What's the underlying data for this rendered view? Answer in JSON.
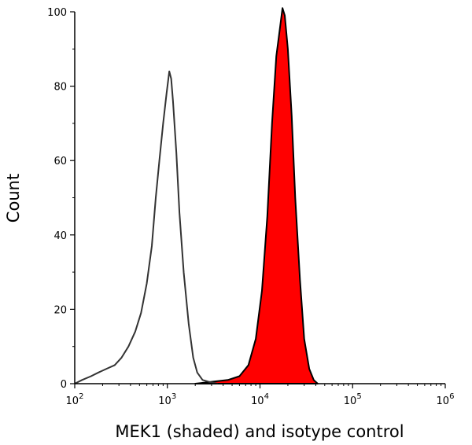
{
  "chart_data": {
    "type": "area",
    "title": "",
    "xlabel": "MEK1 (shaded) and isotype control",
    "ylabel": "Count",
    "xscale": "log",
    "xlim": [
      100,
      1000000
    ],
    "ylim": [
      0,
      100
    ],
    "grid": false,
    "x_ticks": [
      {
        "base": "10",
        "exp": "2"
      },
      {
        "base": "10",
        "exp": "3"
      },
      {
        "base": "10",
        "exp": "4"
      },
      {
        "base": "10",
        "exp": "5"
      },
      {
        "base": "10",
        "exp": "6"
      }
    ],
    "y_ticks": [
      "0",
      "20",
      "40",
      "60",
      "80",
      "100"
    ],
    "series": [
      {
        "name": "isotype control",
        "style": "outline",
        "color": "#333333",
        "x": [
          100,
          120,
          150,
          180,
          220,
          270,
          320,
          380,
          450,
          520,
          600,
          680,
          750,
          820,
          900,
          980,
          1050,
          1100,
          1150,
          1250,
          1350,
          1500,
          1700,
          1900,
          2100,
          2400,
          2800,
          3500
        ],
        "y": [
          0,
          1,
          2,
          3,
          4,
          5,
          7,
          10,
          14,
          19,
          27,
          37,
          50,
          60,
          70,
          78,
          84,
          82,
          76,
          62,
          46,
          30,
          16,
          7,
          3,
          1,
          0.5,
          0
        ]
      },
      {
        "name": "MEK1",
        "style": "filled",
        "color": "#ff0000",
        "x": [
          2000,
          3000,
          4500,
          6000,
          7500,
          9000,
          10500,
          12000,
          13500,
          15000,
          16500,
          17500,
          18500,
          20000,
          22000,
          24000,
          27000,
          30000,
          34000,
          38000,
          42000
        ],
        "y": [
          0,
          0.5,
          1,
          2,
          5,
          12,
          25,
          45,
          70,
          88,
          96,
          101,
          99,
          90,
          72,
          50,
          28,
          12,
          4,
          1,
          0
        ]
      }
    ]
  }
}
